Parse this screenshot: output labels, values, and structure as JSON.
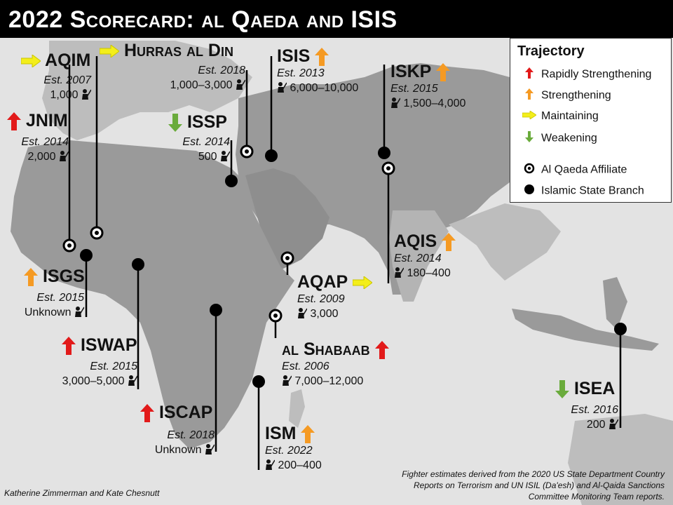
{
  "title": "2022 Scorecard: al Qaeda and ISIS",
  "colors": {
    "rapid": "#e21a1a",
    "strength": "#f59a23",
    "maintain": "#f3ee1a",
    "weaken": "#6aab3c",
    "land": "#9a9a9a",
    "sea": "#e3e3e3"
  },
  "legend": {
    "title": "Trajectory",
    "items": [
      {
        "label": "Rapidly Strengthening",
        "icon": "red-up-arrow-icon"
      },
      {
        "label": "Strengthening",
        "icon": "orange-up-arrow-icon"
      },
      {
        "label": "Maintaining",
        "icon": "yellow-right-arrow-icon"
      },
      {
        "label": "Weakening",
        "icon": "green-down-arrow-icon"
      }
    ],
    "markers": [
      {
        "label": "Al Qaeda Affiliate",
        "icon": "ringed-dot-icon"
      },
      {
        "label": "Islamic State Branch",
        "icon": "solid-dot-icon"
      }
    ]
  },
  "groups": {
    "aqim": {
      "name": "AQIM",
      "est": "Est. 2007",
      "count": "1,000",
      "trend": "maintaining",
      "type": "al-qaeda"
    },
    "hurras": {
      "name": "Hurras al Din",
      "est": "Est. 2018",
      "count": "1,000–3,000",
      "trend": "maintaining",
      "type": "al-qaeda"
    },
    "isis": {
      "name": "ISIS",
      "est": "Est. 2013",
      "count": "6,000–10,000",
      "trend": "strengthening",
      "type": "islamic-state"
    },
    "iskp": {
      "name": "ISKP",
      "est": "Est. 2015",
      "count": "1,500–4,000",
      "trend": "strengthening",
      "type": "islamic-state"
    },
    "jnim": {
      "name": "JNIM",
      "est": "Est. 2014",
      "count": "2,000",
      "trend": "rapidly strengthening",
      "type": "al-qaeda"
    },
    "issp": {
      "name": "ISSP",
      "est": "Est. 2014",
      "count": "500",
      "trend": "weakening",
      "type": "islamic-state"
    },
    "aqis": {
      "name": "AQIS",
      "est": "Est. 2014",
      "count": "180–400",
      "trend": "strengthening",
      "type": "al-qaeda"
    },
    "isgs": {
      "name": "ISGS",
      "est": "Est. 2015",
      "count": "Unknown",
      "trend": "strengthening",
      "type": "islamic-state"
    },
    "aqap": {
      "name": "AQAP",
      "est": "Est. 2009",
      "count": "3,000",
      "trend": "maintaining",
      "type": "al-qaeda"
    },
    "iswap": {
      "name": "ISWAP",
      "est": "Est. 2015",
      "count": "3,000–5,000",
      "trend": "rapidly strengthening",
      "type": "islamic-state"
    },
    "shabaab": {
      "name": "al Shabaab",
      "est": "Est. 2006",
      "count": "7,000–12,000",
      "trend": "rapidly strengthening",
      "type": "al-qaeda"
    },
    "iscap": {
      "name": "ISCAP",
      "est": "Est. 2018",
      "count": "Unknown",
      "trend": "rapidly strengthening",
      "type": "islamic-state"
    },
    "ism": {
      "name": "ISM",
      "est": "Est. 2022",
      "count": "200–400",
      "trend": "strengthening",
      "type": "islamic-state"
    },
    "isea": {
      "name": "ISEA",
      "est": "Est. 2016",
      "count": "200",
      "trend": "weakening",
      "type": "islamic-state"
    }
  },
  "credit": "Katherine Zimmerman and Kate Chesnutt",
  "source": "Fighter estimates derived from the 2020 US State Department Country Reports on Terrorism and UN ISIL (Da'esh) and Al-Qaida Sanctions Committee Monitoring Team reports."
}
